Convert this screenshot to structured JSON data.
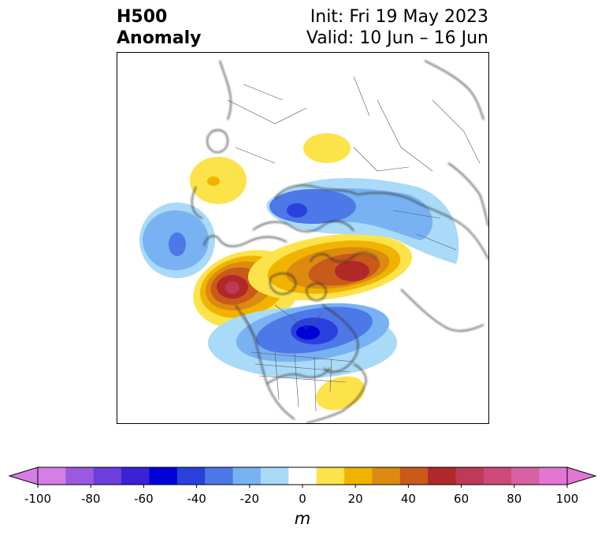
{
  "title": {
    "left_line1": "H500",
    "left_line2": "Anomaly",
    "right_line1": "Init: Fri 19 May 2023",
    "right_line2": "Valid: 10 Jun – 16 Jun"
  },
  "map": {
    "projection": "polar stereographic, North America / North Pole",
    "field": "500 hPa geopotential height anomaly",
    "notable_features": [
      {
        "type": "negative",
        "label": "trough over Hudson Bay / eastern Canada"
      },
      {
        "type": "negative",
        "label": "trough over eastern North Pacific"
      },
      {
        "type": "negative",
        "label": "trough over Barents/Kara Sea"
      },
      {
        "type": "positive",
        "label": "ridge over Alaska / Pacific Northwest"
      },
      {
        "type": "positive",
        "label": "ridge over Greenland / Canadian Arctic"
      },
      {
        "type": "positive",
        "label": "ridge over Scandinavia"
      },
      {
        "type": "positive",
        "label": "ridge over western Europe"
      },
      {
        "type": "positive",
        "label": "ridge over Southeast US"
      }
    ]
  },
  "colorbar": {
    "unit": "m",
    "ticks": [
      "-100",
      "-80",
      "-60",
      "-40",
      "-20",
      "0",
      "20",
      "40",
      "60",
      "80",
      "100"
    ],
    "levels": [
      -100,
      -90,
      -80,
      -70,
      -60,
      -50,
      -40,
      -30,
      -20,
      -10,
      10,
      20,
      30,
      40,
      50,
      60,
      70,
      80,
      90,
      100
    ],
    "colors": [
      "#d47ee6",
      "#9b59e0",
      "#6a3fdb",
      "#3a22d6",
      "#0000d8",
      "#2a40dc",
      "#4d78e8",
      "#78b2f2",
      "#a9daf8",
      "#ffffff",
      "#fde34a",
      "#f0b400",
      "#dc8b10",
      "#c85a1a",
      "#b12828",
      "#bf3a56",
      "#cd4a7a",
      "#d761a4",
      "#e476d3"
    ],
    "extend_low_color": "#d47ee6",
    "extend_high_color": "#e476d3"
  }
}
